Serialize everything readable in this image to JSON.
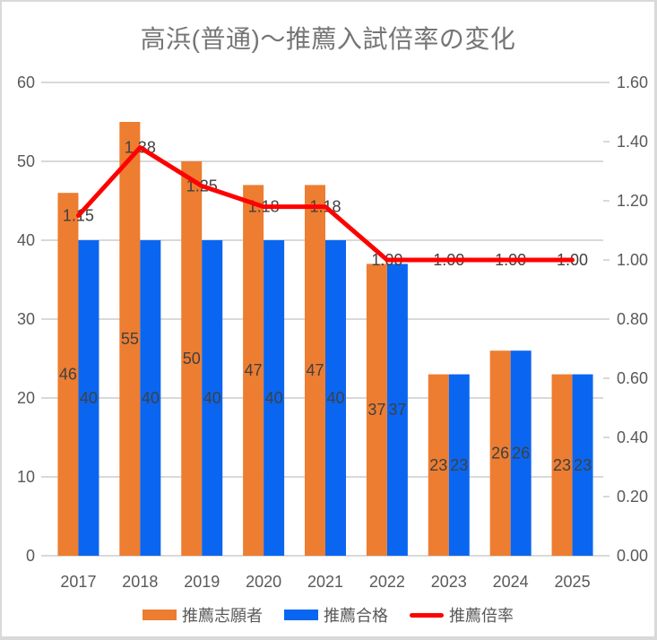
{
  "chart_data": {
    "type": "combo",
    "title": "高浜(普通)～推薦入試倍率の変化",
    "categories": [
      "2017",
      "2018",
      "2019",
      "2020",
      "2021",
      "2022",
      "2023",
      "2024",
      "2025"
    ],
    "series": [
      {
        "name": "推薦志願者",
        "type": "bar",
        "axis": "left",
        "color": "#ED7D31",
        "values": [
          46,
          55,
          50,
          47,
          47,
          37,
          23,
          26,
          23
        ],
        "labels": [
          "46",
          "55",
          "50",
          "47",
          "47",
          "37",
          "23",
          "26",
          "23"
        ]
      },
      {
        "name": "推薦合格",
        "type": "bar",
        "axis": "left",
        "color": "#0A66F0",
        "values": [
          40,
          40,
          40,
          40,
          40,
          37,
          23,
          26,
          23
        ],
        "labels": [
          "40",
          "40",
          "40",
          "40",
          "40",
          "37",
          "23",
          "26",
          "23"
        ]
      },
      {
        "name": "推薦倍率",
        "type": "line",
        "axis": "right",
        "color": "#FF0000",
        "values": [
          1.15,
          1.38,
          1.25,
          1.18,
          1.18,
          1.0,
          1.0,
          1.0,
          1.0
        ],
        "labels": [
          "1.15",
          "1.38",
          "1.25",
          "1.18",
          "1.18",
          "1.00",
          "1.00",
          "1.00",
          "1.00"
        ]
      }
    ],
    "left_axis": {
      "min": 0,
      "max": 60,
      "step": 10,
      "tick_labels": [
        "0",
        "10",
        "20",
        "30",
        "40",
        "50",
        "60"
      ]
    },
    "right_axis": {
      "min": 0,
      "max": 1.6,
      "step": 0.2,
      "tick_labels": [
        "0.00",
        "0.20",
        "0.40",
        "0.60",
        "0.80",
        "1.00",
        "1.20",
        "1.40",
        "1.60"
      ]
    },
    "grid": true,
    "legend_position": "bottom"
  },
  "colors": {
    "background": "#FFFFFF",
    "frame_border": "#D9D9D9",
    "gridline": "#D9D9D9",
    "title_text": "#757575",
    "axis_text": "#595959",
    "data_label_text": "#404040"
  }
}
